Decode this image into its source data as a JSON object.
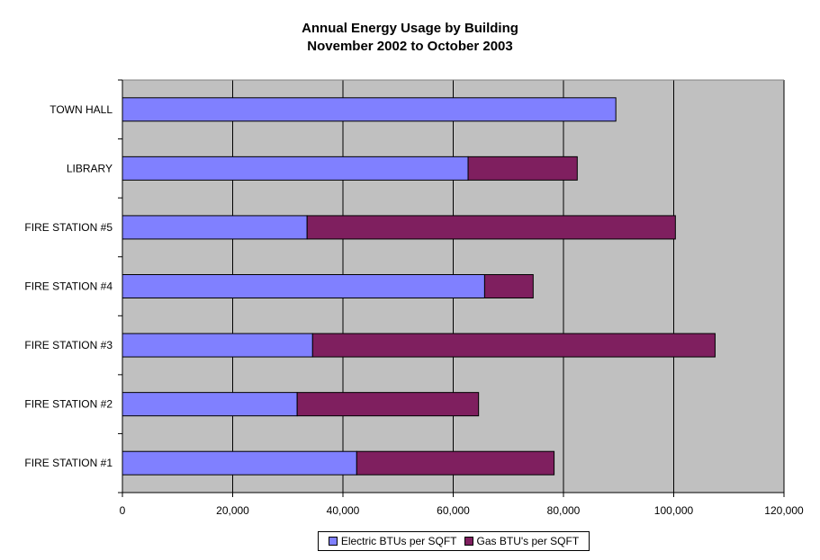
{
  "chart_data": {
    "type": "bar",
    "orientation": "horizontal",
    "stacked": true,
    "title": "Annual Energy Usage by Building",
    "subtitle": "November 2002 to October 2003",
    "categories": [
      "TOWN HALL",
      "LIBRARY",
      "FIRE STATION #5",
      "FIRE STATION #4",
      "FIRE STATION #3",
      "FIRE STATION #2",
      "FIRE STATION #1"
    ],
    "series": [
      {
        "name": "Electric BTUs per SQFT",
        "color": "#8080ff",
        "values": [
          89500,
          62700,
          33500,
          65700,
          34500,
          31700,
          42500
        ]
      },
      {
        "name": "Gas BTU's per SQFT",
        "color": "#7f1f5f",
        "values": [
          0,
          19800,
          66800,
          8800,
          73000,
          32900,
          35800
        ]
      }
    ],
    "xlim": [
      0,
      120000
    ],
    "xticks": [
      0,
      20000,
      40000,
      60000,
      80000,
      100000,
      120000
    ],
    "xtick_labels": [
      "0",
      "20,000",
      "40,000",
      "60,000",
      "80,000",
      "100,000",
      "120,000"
    ],
    "grid": true,
    "plot_background": "#c0c0c0",
    "legend_position": "bottom"
  }
}
